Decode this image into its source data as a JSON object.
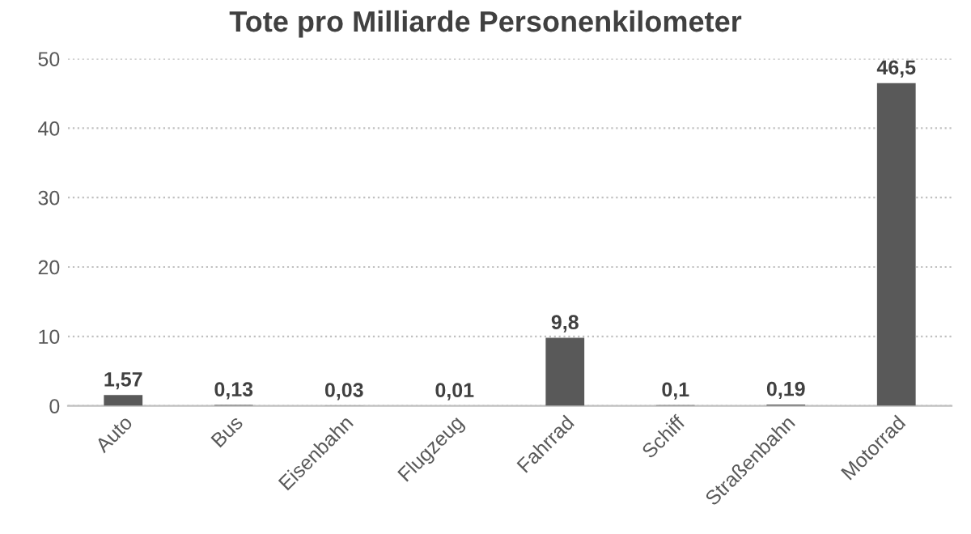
{
  "chart_data": {
    "type": "bar",
    "title": "Tote pro Milliarde Personenkilometer",
    "categories": [
      "Auto",
      "Bus",
      "Eisenbahn",
      "Flugzeug",
      "Fahrrad",
      "Schiff",
      "Straßenbahn",
      "Motorrad"
    ],
    "values": [
      1.57,
      0.13,
      0.03,
      0.01,
      9.8,
      0.1,
      0.19,
      46.5
    ],
    "value_labels": [
      "1,57",
      "0,13",
      "0,03",
      "0,01",
      "9,8",
      "0,1",
      "0,19",
      "46,5"
    ],
    "color": "#595959",
    "ylim": [
      0,
      50
    ],
    "yticks": [
      0,
      10,
      20,
      30,
      40,
      50
    ],
    "grid": "y"
  }
}
